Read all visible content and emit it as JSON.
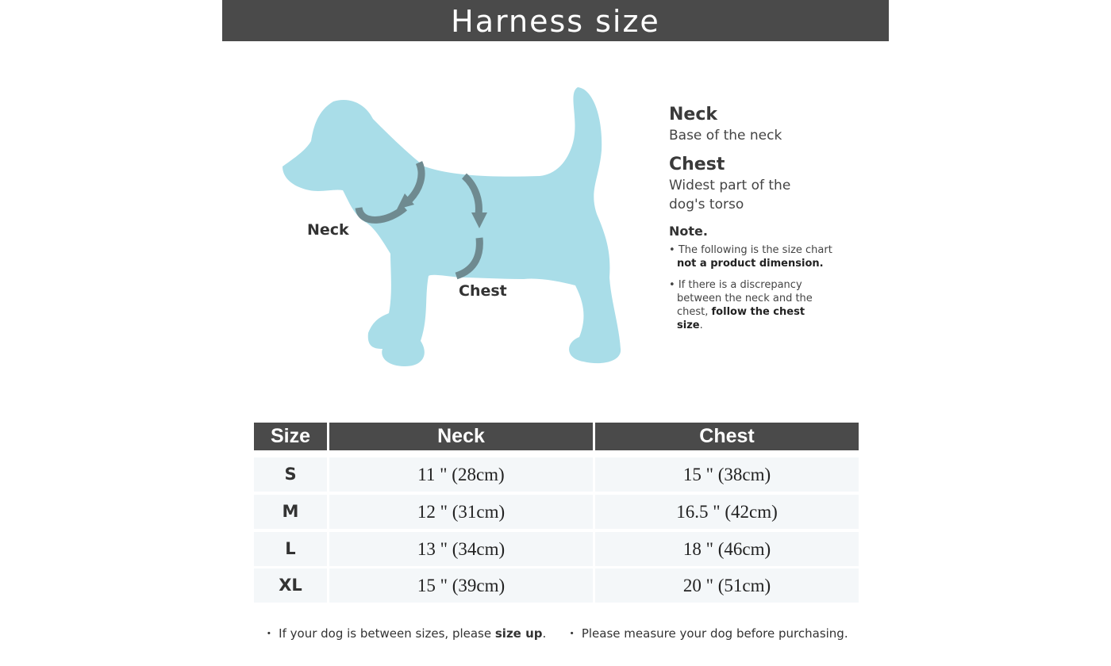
{
  "title": "Harness size",
  "diagram": {
    "neck_label": "Neck",
    "chest_label": "Chest",
    "dog_color": "#a9dde8",
    "arrow_color": "#6f8a90"
  },
  "info": {
    "neck_title": "Neck",
    "neck_desc": "Base of the neck",
    "chest_title": "Chest",
    "chest_desc": "Widest part of the dog's torso",
    "note_title": "Note.",
    "note1_text": "The following is the size chart ",
    "note1_bold": "not a product dimension.",
    "note2_text": "If there is a discrepancy between the neck and the chest, ",
    "note2_bold": "follow the chest size",
    "note2_end": "."
  },
  "table": {
    "headers": [
      "Size",
      "Neck",
      "Chest"
    ],
    "rows": [
      [
        "S",
        "11 \" (28cm)",
        "15 \" (38cm)"
      ],
      [
        "M",
        "12 \" (31cm)",
        "16.5 \" (42cm)"
      ],
      [
        "L",
        "13 \" (34cm)",
        "18 \" (46cm)"
      ],
      [
        "XL",
        "15 \" (39cm)",
        "20 \" (51cm)"
      ]
    ]
  },
  "footer": {
    "tip1_text": "If your dog is between sizes, please ",
    "tip1_bold": "size up",
    "tip1_end": ".",
    "tip2_text": "Please measure your dog before purchasing."
  },
  "colors": {
    "header_bg": "#4a4a4a",
    "row_bg": "#f4f7f9"
  }
}
